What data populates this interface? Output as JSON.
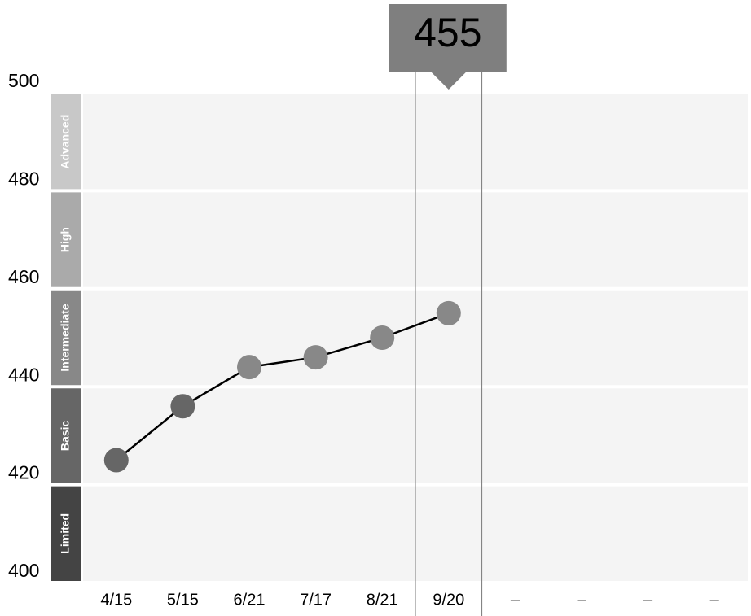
{
  "chart_data": {
    "type": "line",
    "categories": [
      "4/15",
      "5/15",
      "6/21",
      "7/17",
      "8/21",
      "9/20",
      "–",
      "–",
      "–",
      "–"
    ],
    "values": [
      425,
      436,
      444,
      446,
      450,
      455,
      null,
      null,
      null,
      null
    ],
    "line_color": "#000000",
    "ylim": [
      400,
      500
    ],
    "yticks": [
      400,
      420,
      440,
      460,
      480,
      500
    ],
    "bands": [
      {
        "label": "Advanced",
        "range": [
          480,
          500
        ],
        "color": "#c8c8c8"
      },
      {
        "label": "High",
        "range": [
          460,
          480
        ],
        "color": "#aaaaaa"
      },
      {
        "label": "Intermediate",
        "range": [
          440,
          460
        ],
        "color": "#888888"
      },
      {
        "label": "Basic",
        "range": [
          420,
          440
        ],
        "color": "#666666"
      },
      {
        "label": "Limited",
        "range": [
          400,
          420
        ],
        "color": "#444444"
      }
    ],
    "highlight_index": 5
  }
}
